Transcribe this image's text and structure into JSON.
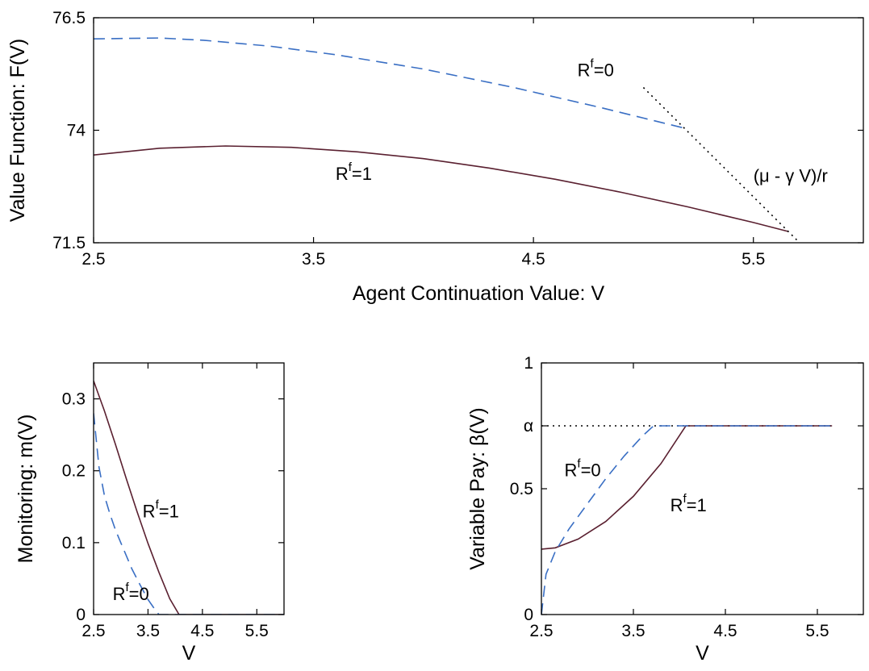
{
  "chart_data": [
    {
      "type": "line",
      "xlabel": "Agent Continuation Value: V",
      "ylabel": "Value Function: F(V)",
      "xlim": [
        2.5,
        6
      ],
      "ylim": [
        71.5,
        76.5
      ],
      "xticks": [
        "2.5",
        "3.5",
        "4.5",
        "5.5"
      ],
      "yticks": [
        "71.5",
        "74",
        "76.5"
      ],
      "grid": false,
      "series": [
        {
          "name": "R^f=0",
          "style": "dashed",
          "color": "#3a6fc4",
          "x": [
            2.5,
            2.8,
            3.0,
            3.3,
            3.6,
            4.0,
            4.4,
            4.8,
            5.0,
            5.2
          ],
          "y": [
            76.03,
            76.05,
            76.0,
            75.87,
            75.68,
            75.36,
            74.96,
            74.51,
            74.27,
            74.03
          ]
        },
        {
          "name": "R^f=1",
          "style": "solid",
          "color": "#5a2030",
          "x": [
            2.5,
            2.8,
            3.1,
            3.4,
            3.7,
            4.0,
            4.3,
            4.6,
            4.9,
            5.2,
            5.5,
            5.66
          ],
          "y": [
            73.45,
            73.6,
            73.65,
            73.62,
            73.52,
            73.37,
            73.16,
            72.91,
            72.62,
            72.3,
            71.95,
            71.75
          ]
        },
        {
          "name": "(μ - γ V)/r",
          "style": "dotted",
          "color": "#000000",
          "x": [
            5.0,
            5.7
          ],
          "y": [
            74.95,
            71.55
          ]
        }
      ],
      "annotations": [
        {
          "text": "R",
          "sup": "f",
          "rest": "=0",
          "x": 4.7,
          "y": 75.2
        },
        {
          "text": "R",
          "sup": "f",
          "rest": "=1",
          "x": 3.6,
          "y": 72.9
        },
        {
          "text": "(μ - γ V)/r",
          "x": 5.5,
          "y": 72.85
        }
      ]
    },
    {
      "type": "line",
      "xlabel": "V",
      "ylabel": "Monitoring: m(V)",
      "xlim": [
        2.5,
        6
      ],
      "ylim": [
        0,
        0.35
      ],
      "xticks": [
        "2.5",
        "3.5",
        "4.5",
        "5.5"
      ],
      "yticks": [
        "0",
        "0.1",
        "0.2",
        "0.3"
      ],
      "grid": false,
      "series": [
        {
          "name": "R^f=1",
          "style": "solid",
          "color": "#5a2030",
          "x": [
            2.5,
            2.7,
            2.9,
            3.1,
            3.3,
            3.5,
            3.7,
            3.9,
            4.07,
            6.0
          ],
          "y": [
            0.325,
            0.283,
            0.237,
            0.189,
            0.143,
            0.099,
            0.059,
            0.022,
            0.0,
            0.0
          ]
        },
        {
          "name": "R^f=0",
          "style": "dashed",
          "color": "#3a6fc4",
          "x": [
            2.5,
            2.6,
            2.7,
            2.8,
            2.9,
            3.0,
            3.1,
            3.2,
            3.35,
            3.5,
            3.6,
            3.7,
            6.0
          ],
          "y": [
            0.28,
            0.205,
            0.165,
            0.14,
            0.118,
            0.1,
            0.082,
            0.064,
            0.042,
            0.021,
            0.01,
            0.0,
            0.0
          ]
        }
      ],
      "annotations": [
        {
          "text": "R",
          "sup": "f",
          "rest": "=1",
          "x": 3.4,
          "y": 0.135
        },
        {
          "text": "R",
          "sup": "f",
          "rest": "=0",
          "x": 2.85,
          "y": 0.02
        }
      ]
    },
    {
      "type": "line",
      "xlabel": "V",
      "ylabel": "Variable Pay: β(V)",
      "xlim": [
        2.5,
        6
      ],
      "ylim": [
        0,
        1
      ],
      "xticks": [
        "2.5",
        "3.5",
        "4.5",
        "5.5"
      ],
      "yticks": [
        "0",
        "0.5",
        "1"
      ],
      "extra_ytick": {
        "label": "α",
        "value": 0.75
      },
      "grid": false,
      "series": [
        {
          "name": "α",
          "style": "dotted",
          "color": "#000000",
          "x": [
            2.5,
            5.66
          ],
          "y": [
            0.75,
            0.75
          ]
        },
        {
          "name": "R^f=1",
          "style": "solid",
          "color": "#5a2030",
          "x": [
            2.5,
            2.65,
            2.9,
            3.2,
            3.5,
            3.8,
            4.07,
            5.66
          ],
          "y": [
            0.26,
            0.265,
            0.3,
            0.37,
            0.47,
            0.6,
            0.75,
            0.75
          ]
        },
        {
          "name": "R^f=0",
          "style": "dashed",
          "color": "#3a6fc4",
          "x": [
            2.5,
            2.55,
            2.65,
            2.8,
            3.0,
            3.2,
            3.4,
            3.6,
            3.72,
            5.66
          ],
          "y": [
            0.0,
            0.16,
            0.25,
            0.34,
            0.44,
            0.54,
            0.63,
            0.71,
            0.75,
            0.75
          ]
        }
      ],
      "annotations": [
        {
          "text": "R",
          "sup": "f",
          "rest": "=0",
          "x": 2.75,
          "y": 0.55
        },
        {
          "text": "R",
          "sup": "f",
          "rest": "=1",
          "x": 3.9,
          "y": 0.41
        }
      ]
    }
  ]
}
